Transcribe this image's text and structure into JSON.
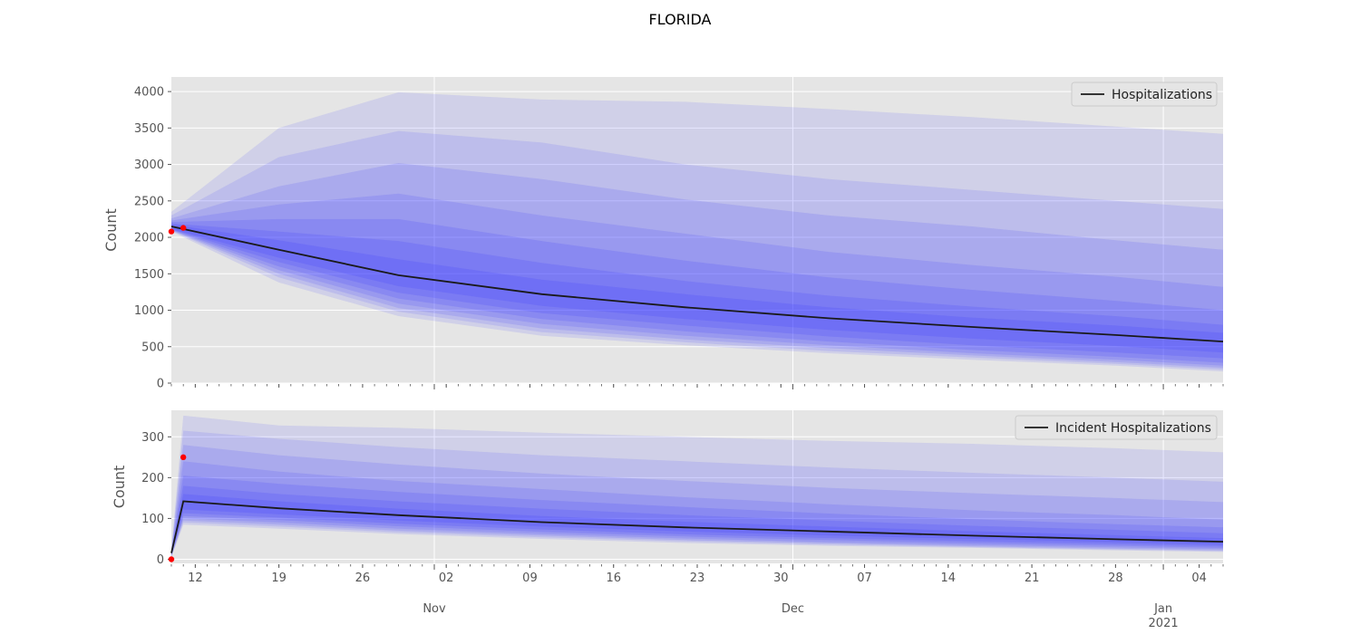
{
  "figure_title": "FLORIDA",
  "colors": {
    "panel_bg": "#e5e5e5",
    "grid": "#ffffff",
    "band": "#3b3bff",
    "median": "#1a1a1a",
    "observed": "#ff0000",
    "tick_text": "#555555",
    "label_text": "#555555"
  },
  "x_axis": {
    "start": "2020-10-10",
    "end": "2021-01-06",
    "major_ticks": [
      {
        "date": "2020-11-01",
        "label": "Nov",
        "sub": ""
      },
      {
        "date": "2020-12-01",
        "label": "Dec",
        "sub": ""
      },
      {
        "date": "2021-01-01",
        "label": "Jan",
        "sub": "2021"
      }
    ],
    "minor_labels": [
      {
        "date": "2020-10-12",
        "label": "12"
      },
      {
        "date": "2020-10-19",
        "label": "19"
      },
      {
        "date": "2020-10-26",
        "label": "26"
      },
      {
        "date": "2020-11-02",
        "label": "02"
      },
      {
        "date": "2020-11-09",
        "label": "09"
      },
      {
        "date": "2020-11-16",
        "label": "16"
      },
      {
        "date": "2020-11-23",
        "label": "23"
      },
      {
        "date": "2020-11-30",
        "label": "30"
      },
      {
        "date": "2020-12-07",
        "label": "07"
      },
      {
        "date": "2020-12-14",
        "label": "14"
      },
      {
        "date": "2020-12-21",
        "label": "21"
      },
      {
        "date": "2020-12-28",
        "label": "28"
      },
      {
        "date": "2021-01-04",
        "label": "04"
      }
    ]
  },
  "chart_data": [
    {
      "type": "area",
      "name": "top-panel",
      "ylabel": "Count",
      "ylim": [
        0,
        4200
      ],
      "yticks": [
        0,
        500,
        1000,
        1500,
        2000,
        2500,
        3000,
        3500,
        4000
      ],
      "legend": {
        "label": "Hospitalizations",
        "placement": "top-right"
      },
      "grid": true,
      "x": [
        "2020-10-10",
        "2020-10-19",
        "2020-10-29",
        "2020-11-10",
        "2020-11-22",
        "2020-12-04",
        "2020-12-16",
        "2020-12-28",
        "2021-01-06"
      ],
      "median": [
        2150,
        1830,
        1480,
        1220,
        1040,
        890,
        770,
        660,
        570
      ],
      "bands": [
        {
          "lower": [
            2080,
            1380,
            920,
            650,
            520,
            410,
            320,
            240,
            160
          ],
          "upper": [
            2350,
            3500,
            3990,
            3890,
            3860,
            3760,
            3650,
            3520,
            3420
          ]
        },
        {
          "lower": [
            2090,
            1450,
            980,
            700,
            560,
            440,
            350,
            265,
            185
          ],
          "upper": [
            2300,
            3100,
            3460,
            3300,
            3000,
            2800,
            2650,
            2500,
            2390
          ]
        },
        {
          "lower": [
            2095,
            1500,
            1030,
            750,
            600,
            480,
            380,
            290,
            210
          ],
          "upper": [
            2260,
            2700,
            3020,
            2800,
            2520,
            2300,
            2150,
            1960,
            1830
          ]
        },
        {
          "lower": [
            2100,
            1550,
            1090,
            810,
            650,
            520,
            410,
            320,
            240
          ],
          "upper": [
            2230,
            2450,
            2600,
            2300,
            2050,
            1800,
            1620,
            1460,
            1320
          ]
        },
        {
          "lower": [
            2105,
            1600,
            1160,
            880,
            710,
            570,
            455,
            360,
            280
          ],
          "upper": [
            2210,
            2250,
            2250,
            1950,
            1680,
            1450,
            1280,
            1130,
            1000
          ]
        },
        {
          "lower": [
            2110,
            1660,
            1240,
            960,
            790,
            640,
            520,
            420,
            340
          ],
          "upper": [
            2190,
            2080,
            1950,
            1650,
            1400,
            1200,
            1050,
            920,
            800
          ]
        },
        {
          "lower": [
            2115,
            1720,
            1330,
            1060,
            880,
            730,
            610,
            510,
            420
          ],
          "upper": [
            2175,
            1960,
            1700,
            1420,
            1220,
            1040,
            900,
            790,
            690
          ]
        }
      ],
      "observed": [
        {
          "date": "2020-10-10",
          "value": 2080
        },
        {
          "date": "2020-10-11",
          "value": 2130
        }
      ]
    },
    {
      "type": "area",
      "name": "bottom-panel",
      "ylabel": "Count",
      "ylim": [
        -10,
        365
      ],
      "yticks": [
        0,
        100,
        200,
        300
      ],
      "legend": {
        "label": "Incident Hospitalizations",
        "placement": "top-right"
      },
      "grid": true,
      "x": [
        "2020-10-10",
        "2020-10-11",
        "2020-10-19",
        "2020-10-29",
        "2020-11-10",
        "2020-11-22",
        "2020-12-04",
        "2020-12-16",
        "2020-12-28",
        "2021-01-06"
      ],
      "median": [
        15,
        142,
        125,
        108,
        91,
        78,
        68,
        58,
        49,
        43
      ],
      "bands": [
        {
          "lower": [
            5,
            85,
            75,
            62,
            50,
            40,
            33,
            28,
            22,
            18
          ],
          "upper": [
            25,
            352,
            328,
            322,
            310,
            300,
            290,
            283,
            272,
            262
          ]
        },
        {
          "lower": [
            6,
            90,
            80,
            66,
            54,
            44,
            36,
            30,
            24,
            20
          ],
          "upper": [
            23,
            315,
            295,
            275,
            255,
            240,
            225,
            212,
            200,
            190
          ]
        },
        {
          "lower": [
            7,
            95,
            85,
            70,
            58,
            47,
            39,
            32,
            26,
            22
          ],
          "upper": [
            21,
            280,
            255,
            232,
            210,
            192,
            175,
            162,
            150,
            140
          ]
        },
        {
          "lower": [
            8,
            100,
            90,
            75,
            62,
            51,
            42,
            35,
            29,
            25
          ],
          "upper": [
            20,
            240,
            215,
            192,
            172,
            152,
            135,
            120,
            108,
            97
          ]
        },
        {
          "lower": [
            9,
            106,
            96,
            81,
            67,
            56,
            47,
            39,
            33,
            28
          ],
          "upper": [
            18,
            205,
            185,
            165,
            145,
            128,
            112,
            98,
            86,
            78
          ]
        },
        {
          "lower": [
            10,
            113,
            102,
            87,
            73,
            61,
            52,
            44,
            37,
            32
          ],
          "upper": [
            17,
            180,
            160,
            142,
            124,
            108,
            95,
            82,
            72,
            64
          ]
        },
        {
          "lower": [
            12,
            122,
            110,
            95,
            80,
            68,
            58,
            50,
            42,
            36
          ],
          "upper": [
            16,
            160,
            142,
            124,
            106,
            92,
            80,
            69,
            59,
            52
          ]
        }
      ],
      "observed": [
        {
          "date": "2020-10-10",
          "value": 0
        },
        {
          "date": "2020-10-11",
          "value": 250
        }
      ]
    }
  ]
}
